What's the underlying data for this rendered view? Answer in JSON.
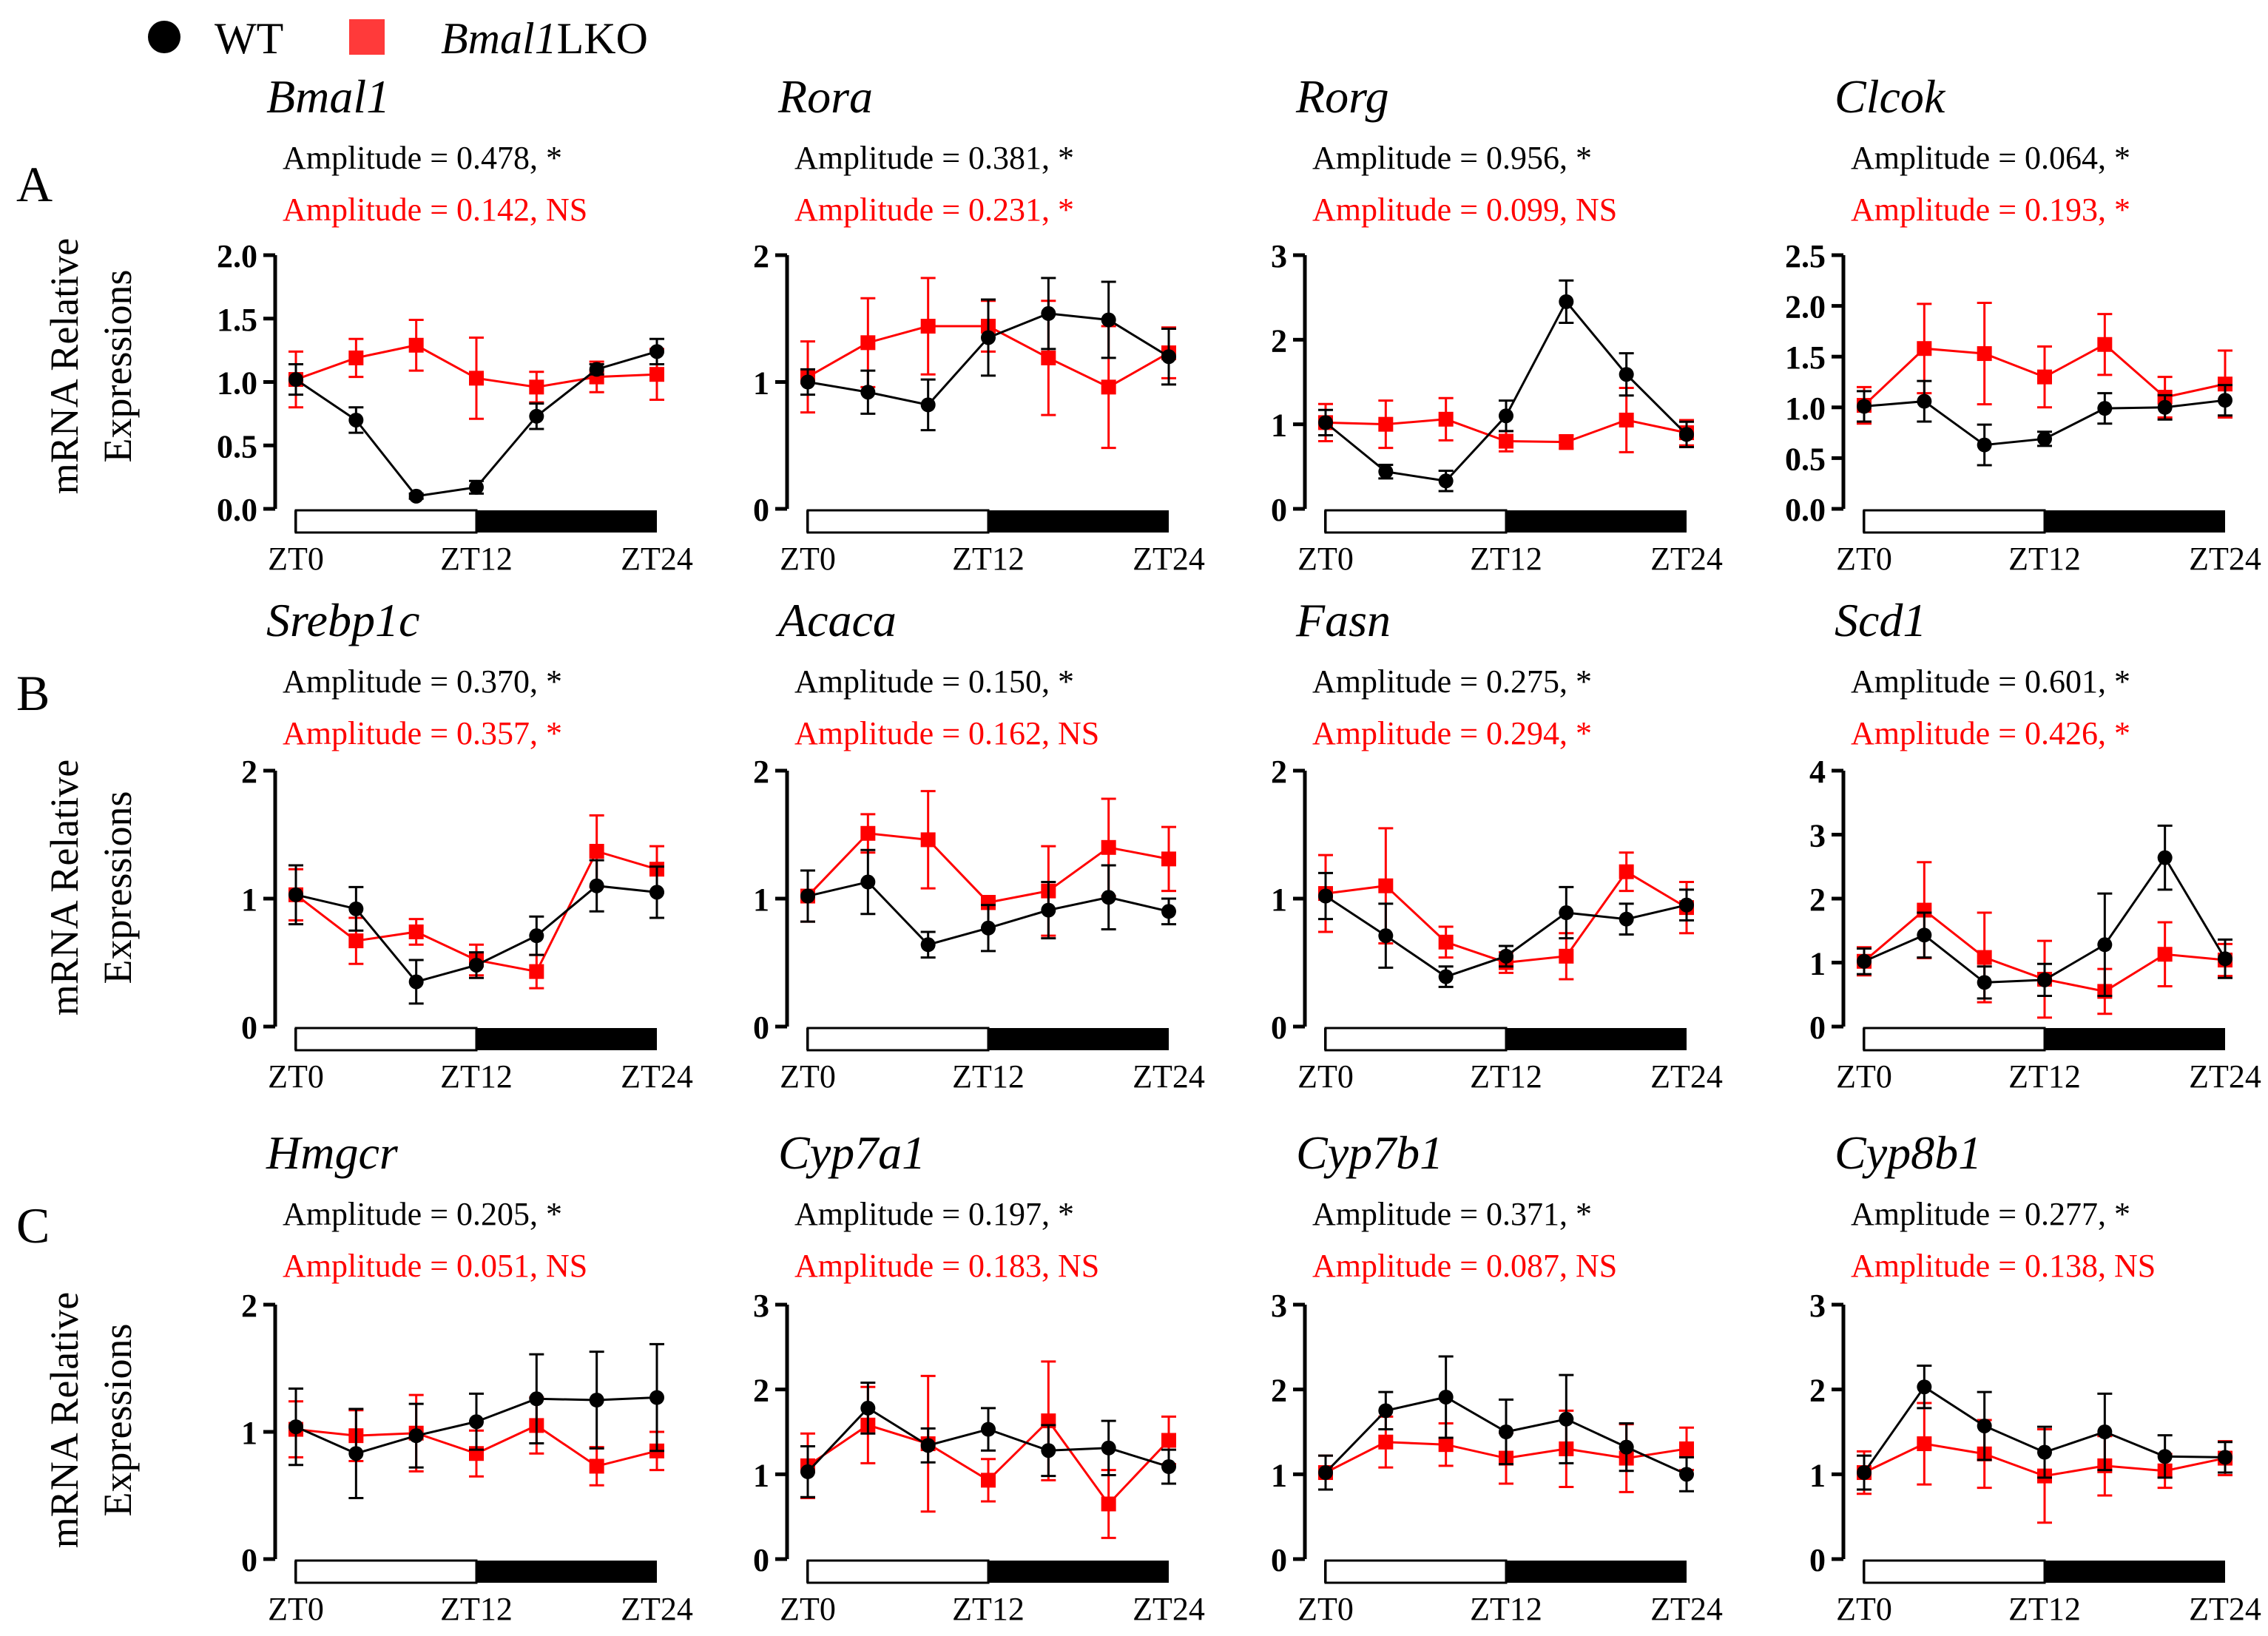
{
  "legend": {
    "wt_label": "WT",
    "ko_label": "Bmal1",
    "ko_suffix": "LKO",
    "colors": {
      "wt": "#000000",
      "ko": "#ff0000",
      "ko_light": "#ff3a3a"
    }
  },
  "row_labels": [
    "A",
    "B",
    "C"
  ],
  "y_axis_label": [
    "mRNA Relative",
    "Expressions"
  ],
  "x_ticks": [
    "ZT0",
    "ZT12",
    "ZT24"
  ],
  "chart_data": [
    {
      "type": "line",
      "title": "Bmal1",
      "row": 0,
      "col": 0,
      "wt_amp": "Amplitude = 0.478, *",
      "ko_amp": "Amplitude = 0.142, NS",
      "ylim": [
        0,
        2.0
      ],
      "yticks": [
        "0.0",
        "0.5",
        "1.0",
        "1.5",
        "2.0"
      ],
      "x": [
        0,
        4,
        8,
        12,
        16,
        20,
        24
      ],
      "series": [
        {
          "name": "WT",
          "values": [
            1.02,
            0.7,
            0.1,
            0.17,
            0.73,
            1.1,
            1.24
          ],
          "err": [
            0.12,
            0.1,
            0.02,
            0.05,
            0.1,
            0.04,
            0.1
          ]
        },
        {
          "name": "Bmal1LKO",
          "values": [
            1.02,
            1.19,
            1.29,
            1.03,
            0.96,
            1.04,
            1.06
          ],
          "err": [
            0.22,
            0.15,
            0.2,
            0.32,
            0.12,
            0.12,
            0.2
          ]
        }
      ]
    },
    {
      "type": "line",
      "title": "Rora",
      "row": 0,
      "col": 1,
      "wt_amp": "Amplitude = 0.381, *",
      "ko_amp": "Amplitude = 0.231, *",
      "ylim": [
        0,
        2
      ],
      "yticks": [
        "0",
        "1",
        "2"
      ],
      "x": [
        0,
        4,
        8,
        12,
        16,
        20,
        24
      ],
      "series": [
        {
          "name": "WT",
          "values": [
            1.0,
            0.92,
            0.82,
            1.35,
            1.54,
            1.49,
            1.2
          ],
          "err": [
            0.1,
            0.17,
            0.2,
            0.3,
            0.28,
            0.3,
            0.22
          ]
        },
        {
          "name": "Bmal1LKO",
          "values": [
            1.04,
            1.31,
            1.44,
            1.44,
            1.19,
            0.96,
            1.23
          ],
          "err": [
            0.28,
            0.35,
            0.38,
            0.2,
            0.45,
            0.48,
            0.2
          ]
        }
      ]
    },
    {
      "type": "line",
      "title": "Rorg",
      "row": 0,
      "col": 2,
      "wt_amp": "Amplitude = 0.956,   *",
      "ko_amp": "Amplitude = 0.099,   NS",
      "ylim": [
        0,
        3
      ],
      "yticks": [
        "0",
        "1",
        "2",
        "3"
      ],
      "x": [
        0,
        4,
        8,
        12,
        16,
        20,
        24
      ],
      "series": [
        {
          "name": "WT",
          "values": [
            1.02,
            0.44,
            0.33,
            1.1,
            2.45,
            1.59,
            0.88
          ],
          "err": [
            0.15,
            0.08,
            0.12,
            0.18,
            0.25,
            0.25,
            0.15
          ]
        },
        {
          "name": "Bmal1LKO",
          "values": [
            1.02,
            1.0,
            1.06,
            0.8,
            0.79,
            1.05,
            0.9
          ],
          "err": [
            0.22,
            0.28,
            0.25,
            0.12,
            0.08,
            0.38,
            0.15
          ]
        }
      ]
    },
    {
      "type": "line",
      "title": "Clcok",
      "row": 0,
      "col": 3,
      "wt_amp": "Amplitude = 0.064, *",
      "ko_amp": "Amplitude = 0.193, *",
      "ylim": [
        0,
        2.5
      ],
      "yticks": [
        "0.0",
        "0.5",
        "1.0",
        "1.5",
        "2.0",
        "2.5"
      ],
      "x": [
        0,
        4,
        8,
        12,
        16,
        20,
        24
      ],
      "series": [
        {
          "name": "WT",
          "values": [
            1.01,
            1.06,
            0.63,
            0.69,
            0.99,
            1.0,
            1.07
          ],
          "err": [
            0.15,
            0.2,
            0.2,
            0.07,
            0.15,
            0.12,
            0.15
          ]
        },
        {
          "name": "Bmal1LKO",
          "values": [
            1.02,
            1.58,
            1.53,
            1.3,
            1.62,
            1.1,
            1.23
          ],
          "err": [
            0.18,
            0.44,
            0.5,
            0.3,
            0.3,
            0.2,
            0.33
          ]
        }
      ]
    },
    {
      "type": "line",
      "title": "Srebp1c",
      "row": 1,
      "col": 0,
      "wt_amp": "Amplitude = 0.370, *",
      "ko_amp": "Amplitude = 0.357, *",
      "ylim": [
        0,
        2
      ],
      "yticks": [
        "0",
        "1",
        "2"
      ],
      "x": [
        0,
        4,
        8,
        12,
        16,
        20,
        24
      ],
      "series": [
        {
          "name": "WT",
          "values": [
            1.03,
            0.92,
            0.35,
            0.48,
            0.71,
            1.1,
            1.05
          ],
          "err": [
            0.23,
            0.17,
            0.17,
            0.1,
            0.15,
            0.2,
            0.2
          ]
        },
        {
          "name": "Bmal1LKO",
          "values": [
            1.03,
            0.67,
            0.74,
            0.52,
            0.43,
            1.37,
            1.23
          ],
          "err": [
            0.2,
            0.18,
            0.1,
            0.12,
            0.13,
            0.28,
            0.18
          ]
        }
      ]
    },
    {
      "type": "line",
      "title": "Acaca",
      "row": 1,
      "col": 1,
      "wt_amp": "Amplitude = 0.150, *",
      "ko_amp": "Amplitude = 0.162, NS",
      "ylim": [
        0,
        2
      ],
      "yticks": [
        "0",
        "1",
        "2"
      ],
      "x": [
        0,
        4,
        8,
        12,
        16,
        20,
        24
      ],
      "series": [
        {
          "name": "WT",
          "values": [
            1.02,
            1.13,
            0.64,
            0.77,
            0.91,
            1.01,
            0.9
          ],
          "err": [
            0.2,
            0.25,
            0.1,
            0.18,
            0.22,
            0.25,
            0.1
          ]
        },
        {
          "name": "Bmal1LKO",
          "values": [
            1.02,
            1.51,
            1.46,
            0.97,
            1.06,
            1.4,
            1.31
          ],
          "err": [
            0.2,
            0.15,
            0.38,
            0.05,
            0.35,
            0.38,
            0.25
          ]
        }
      ]
    },
    {
      "type": "line",
      "title": "Fasn",
      "row": 1,
      "col": 2,
      "wt_amp": "Amplitude = 0.275, *",
      "ko_amp": "Amplitude = 0.294, *",
      "ylim": [
        0,
        2
      ],
      "yticks": [
        "0",
        "1",
        "2"
      ],
      "x": [
        0,
        4,
        8,
        12,
        16,
        20,
        24
      ],
      "series": [
        {
          "name": "WT",
          "values": [
            1.02,
            0.71,
            0.39,
            0.55,
            0.89,
            0.84,
            0.95
          ],
          "err": [
            0.18,
            0.25,
            0.08,
            0.08,
            0.2,
            0.12,
            0.12
          ]
        },
        {
          "name": "Bmal1LKO",
          "values": [
            1.04,
            1.1,
            0.66,
            0.5,
            0.55,
            1.21,
            0.93
          ],
          "err": [
            0.3,
            0.45,
            0.12,
            0.08,
            0.18,
            0.15,
            0.2
          ]
        }
      ]
    },
    {
      "type": "line",
      "title": "Scd1",
      "row": 1,
      "col": 3,
      "wt_amp": "Amplitude = 0.601, *",
      "ko_amp": "Amplitude = 0.426, *",
      "ylim": [
        0,
        4
      ],
      "yticks": [
        "0",
        "1",
        "2",
        "3",
        "4"
      ],
      "x": [
        0,
        4,
        8,
        12,
        16,
        20,
        24
      ],
      "series": [
        {
          "name": "WT",
          "values": [
            1.02,
            1.43,
            0.69,
            0.73,
            1.28,
            2.64,
            1.06
          ],
          "err": [
            0.2,
            0.35,
            0.25,
            0.25,
            0.8,
            0.5,
            0.3
          ]
        },
        {
          "name": "Bmal1LKO",
          "values": [
            1.02,
            1.82,
            1.08,
            0.74,
            0.55,
            1.13,
            1.04
          ],
          "err": [
            0.22,
            0.75,
            0.7,
            0.6,
            0.35,
            0.5,
            0.25
          ]
        }
      ]
    },
    {
      "type": "line",
      "title": "Hmgcr",
      "row": 2,
      "col": 0,
      "wt_amp": "Amplitude = 0.205, *",
      "ko_amp": "Amplitude = 0.051, NS",
      "ylim": [
        0,
        2
      ],
      "yticks": [
        "0",
        "1",
        "2"
      ],
      "x": [
        0,
        4,
        8,
        12,
        16,
        20,
        24
      ],
      "series": [
        {
          "name": "WT",
          "values": [
            1.04,
            0.83,
            0.97,
            1.08,
            1.26,
            1.25,
            1.27
          ],
          "err": [
            0.3,
            0.35,
            0.25,
            0.22,
            0.35,
            0.38,
            0.42
          ]
        },
        {
          "name": "Bmal1LKO",
          "values": [
            1.02,
            0.97,
            0.99,
            0.83,
            1.05,
            0.73,
            0.85
          ],
          "err": [
            0.22,
            0.2,
            0.3,
            0.18,
            0.22,
            0.15,
            0.15
          ]
        }
      ]
    },
    {
      "type": "line",
      "title": "Cyp7a1",
      "row": 2,
      "col": 1,
      "wt_amp": "Amplitude = 0.197, *",
      "ko_amp": "Amplitude = 0.183, NS",
      "ylim": [
        0,
        3
      ],
      "yticks": [
        "0",
        "1",
        "2",
        "3"
      ],
      "x": [
        0,
        4,
        8,
        12,
        16,
        20,
        24
      ],
      "series": [
        {
          "name": "WT",
          "values": [
            1.03,
            1.78,
            1.34,
            1.53,
            1.28,
            1.31,
            1.09
          ],
          "err": [
            0.3,
            0.3,
            0.2,
            0.25,
            0.3,
            0.32,
            0.2
          ]
        },
        {
          "name": "Bmal1LKO",
          "values": [
            1.1,
            1.58,
            1.36,
            0.93,
            1.63,
            0.65,
            1.4
          ],
          "err": [
            0.38,
            0.45,
            0.8,
            0.25,
            0.7,
            0.4,
            0.28
          ]
        }
      ]
    },
    {
      "type": "line",
      "title": "Cyp7b1",
      "row": 2,
      "col": 2,
      "wt_amp": "Amplitude = 0.371, *",
      "ko_amp": "Amplitude = 0.087, NS",
      "ylim": [
        0,
        3
      ],
      "yticks": [
        "0",
        "1",
        "2",
        "3"
      ],
      "x": [
        0,
        4,
        8,
        12,
        16,
        20,
        24
      ],
      "series": [
        {
          "name": "WT",
          "values": [
            1.02,
            1.75,
            1.91,
            1.5,
            1.65,
            1.32,
            1.0
          ],
          "err": [
            0.2,
            0.22,
            0.48,
            0.38,
            0.52,
            0.28,
            0.2
          ]
        },
        {
          "name": "Bmal1LKO",
          "values": [
            1.02,
            1.38,
            1.35,
            1.19,
            1.3,
            1.19,
            1.3
          ],
          "err": [
            0.2,
            0.3,
            0.25,
            0.3,
            0.45,
            0.4,
            0.25
          ]
        }
      ]
    },
    {
      "type": "line",
      "title": "Cyp8b1",
      "row": 2,
      "col": 3,
      "wt_amp": "Amplitude = 0.277, *",
      "ko_amp": "Amplitude = 0.138, NS",
      "ylim": [
        0,
        3
      ],
      "yticks": [
        "0",
        "1",
        "2",
        "3"
      ],
      "x": [
        0,
        4,
        8,
        12,
        16,
        20,
        24
      ],
      "series": [
        {
          "name": "WT",
          "values": [
            1.02,
            2.03,
            1.57,
            1.26,
            1.5,
            1.21,
            1.2
          ],
          "err": [
            0.2,
            0.25,
            0.4,
            0.3,
            0.45,
            0.25,
            0.18
          ]
        },
        {
          "name": "Bmal1LKO",
          "values": [
            1.02,
            1.36,
            1.24,
            0.98,
            1.1,
            1.04,
            1.19
          ],
          "err": [
            0.25,
            0.48,
            0.4,
            0.55,
            0.35,
            0.2,
            0.2
          ]
        }
      ]
    }
  ]
}
